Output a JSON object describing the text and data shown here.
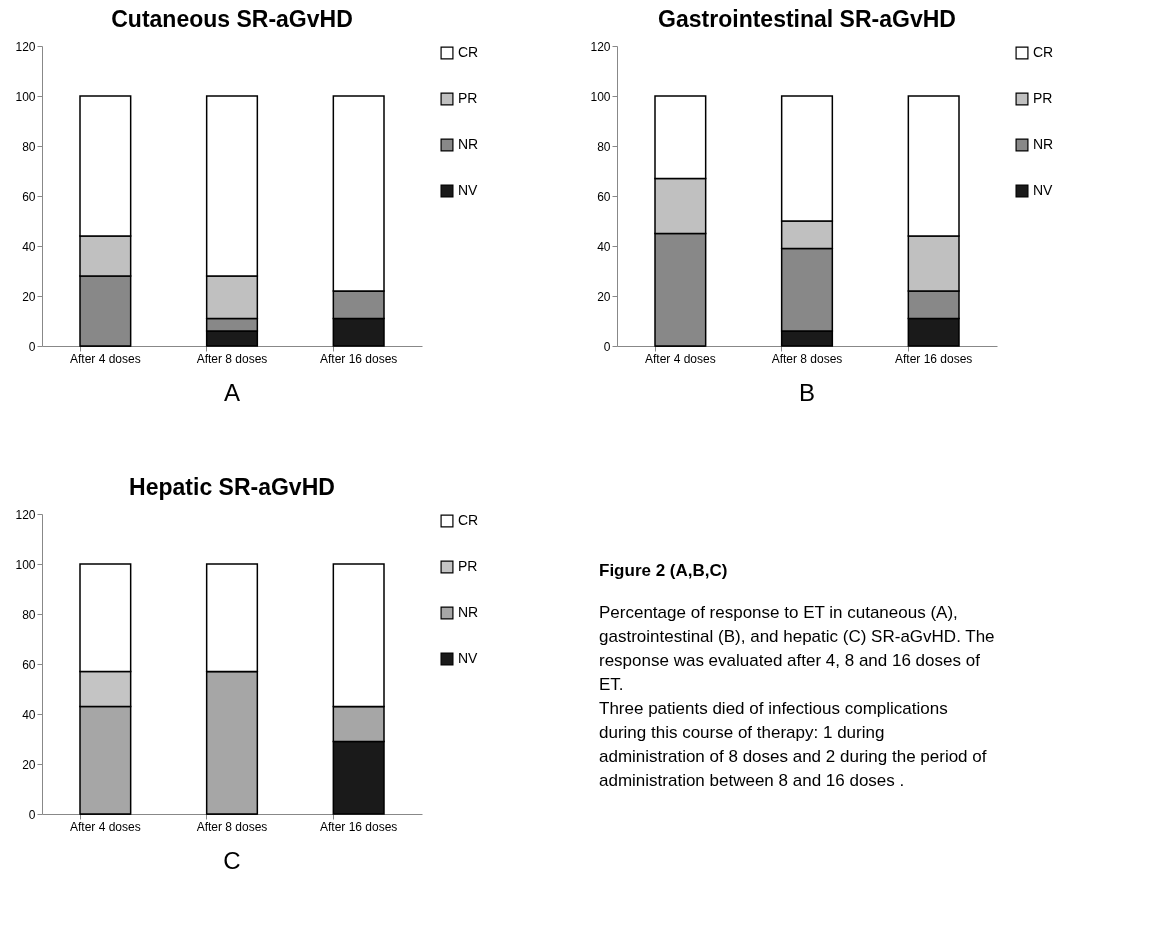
{
  "chart_data": [
    {
      "type": "bar",
      "title": "Cutaneous  SR-aGvHD",
      "categories": [
        "After 4 doses",
        "After 8 doses",
        "After 16 doses"
      ],
      "stacked": true,
      "ylim": [
        0,
        120
      ],
      "yticks": [
        0,
        20,
        40,
        60,
        80,
        100,
        120
      ],
      "legend": "right",
      "annotations": [
        "A"
      ],
      "series": [
        {
          "name": "NV",
          "color": "#1a1a1a",
          "values": [
            0,
            6,
            11
          ]
        },
        {
          "name": "NR",
          "color": "#888888",
          "values": [
            28,
            5,
            11
          ]
        },
        {
          "name": "PR",
          "color": "#c0c0c0",
          "values": [
            16,
            17,
            0
          ]
        },
        {
          "name": "CR",
          "color": "#ffffff",
          "values": [
            56,
            72,
            78
          ]
        }
      ]
    },
    {
      "type": "bar",
      "title": "Gastrointestinal SR-aGvHD",
      "categories": [
        "After 4 doses",
        "After 8 doses",
        "After 16 doses"
      ],
      "stacked": true,
      "ylim": [
        0,
        120
      ],
      "yticks": [
        0,
        20,
        40,
        60,
        80,
        100,
        120
      ],
      "legend": "right",
      "annotations": [
        "B"
      ],
      "series": [
        {
          "name": "NV",
          "color": "#1a1a1a",
          "values": [
            0,
            6,
            11
          ]
        },
        {
          "name": "NR",
          "color": "#888888",
          "values": [
            45,
            33,
            11
          ]
        },
        {
          "name": "PR",
          "color": "#c0c0c0",
          "values": [
            22,
            11,
            22
          ]
        },
        {
          "name": "CR",
          "color": "#ffffff",
          "values": [
            33,
            50,
            56
          ]
        }
      ]
    },
    {
      "type": "bar",
      "title": "Hepatic  SR-aGvHD",
      "categories": [
        "After 4 doses",
        "After 8 doses",
        "After 16 doses"
      ],
      "stacked": true,
      "ylim": [
        0,
        120
      ],
      "yticks": [
        0,
        20,
        40,
        60,
        80,
        100,
        120
      ],
      "legend": "right",
      "annotations": [
        "C"
      ],
      "series": [
        {
          "name": "NV",
          "color": "#1a1a1a",
          "values": [
            0,
            0,
            29
          ]
        },
        {
          "name": "NR",
          "color": "#a6a6a6",
          "values": [
            43,
            57,
            14
          ]
        },
        {
          "name": "PR",
          "color": "#c4c4c4",
          "values": [
            14,
            0,
            0
          ]
        },
        {
          "name": "CR",
          "color": "#ffffff",
          "values": [
            43,
            43,
            57
          ]
        }
      ]
    },
    {
      "type": "other",
      "title": "Figure 2 (A,B,C)",
      "annotations": [
        "Percentage of response to ET in cutaneous (A), gastrointestinal (B), and hepatic (C) SR-aGvHD. The response was evaluated  after 4, 8 and 16 doses of ET.",
        "Three patients died of infectious complications during this course of therapy: 1 during administration of 8 doses and 2 during the period of administration between 8 and 16 doses ."
      ]
    }
  ]
}
